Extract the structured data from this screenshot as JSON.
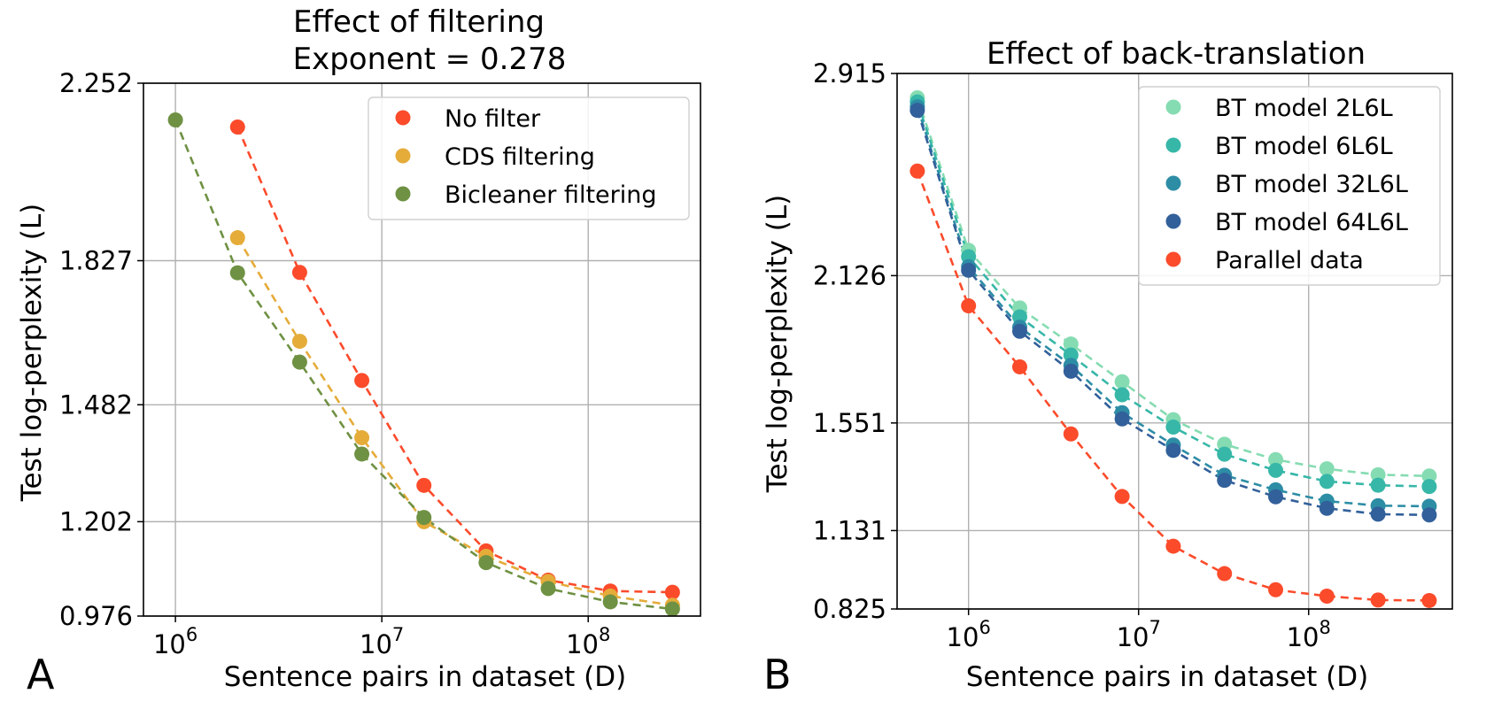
{
  "panel_labels": [
    "A",
    "B"
  ],
  "colors": {
    "no_filter": "#fb4b2b",
    "cds": "#e5ac3a",
    "bicleaner": "#6f9143",
    "bt_2L6L": "#86dcb2",
    "bt_6L6L": "#37b7a8",
    "bt_32L6L": "#2d8da5",
    "bt_64L6L": "#32609a",
    "parallel": "#fb4b2b",
    "grid": "#b0b0b0"
  },
  "chart_data": [
    {
      "type": "scatter",
      "panel": "A",
      "title": "Effect of filtering\nExponent = 0.278",
      "xlabel": "Sentence pairs in dataset (D)",
      "ylabel": "Test log-perplexity (L)",
      "xscale": "log",
      "xlim": [
        700000,
        350000000
      ],
      "ylim": [
        0.976,
        2.252
      ],
      "xticks": [
        1000000,
        10000000,
        100000000
      ],
      "xtick_labels": [
        "10^6",
        "10^7",
        "10^8"
      ],
      "yticks": [
        0.976,
        1.202,
        1.482,
        1.827,
        2.252
      ],
      "ytick_labels": [
        "0.976",
        "1.202",
        "1.482",
        "1.827",
        "2.252"
      ],
      "grid": true,
      "legend_position": "top-right",
      "series": [
        {
          "name": "No filter",
          "color_key": "no_filter",
          "x": [
            2000000,
            4000000,
            8000000,
            16000000,
            32000000,
            64000000,
            128000000,
            256000000
          ],
          "y": [
            2.147,
            1.799,
            1.54,
            1.289,
            1.132,
            1.062,
            1.036,
            1.033
          ]
        },
        {
          "name": "CDS filtering",
          "color_key": "cds",
          "x": [
            2000000,
            4000000,
            8000000,
            16000000,
            32000000,
            64000000,
            128000000,
            256000000
          ],
          "y": [
            1.882,
            1.634,
            1.403,
            1.202,
            1.119,
            1.059,
            1.024,
            1.002
          ]
        },
        {
          "name": "Bicleaner filtering",
          "color_key": "bicleaner",
          "x": [
            1000000,
            2000000,
            4000000,
            8000000,
            16000000,
            32000000,
            64000000,
            128000000,
            256000000
          ],
          "y": [
            2.164,
            1.798,
            1.584,
            1.364,
            1.212,
            1.104,
            1.042,
            1.01,
            0.993
          ]
        }
      ]
    },
    {
      "type": "scatter",
      "panel": "B",
      "title": "Effect of back-translation",
      "xlabel": "Sentence pairs in dataset (D)",
      "ylabel": "Test log-perplexity (L)",
      "xscale": "log",
      "xlim": [
        380000,
        700000000
      ],
      "ylim": [
        0.825,
        2.915
      ],
      "xticks": [
        1000000,
        10000000,
        100000000
      ],
      "xtick_labels": [
        "10^6",
        "10^7",
        "10^8"
      ],
      "yticks": [
        0.825,
        1.131,
        1.551,
        2.126,
        2.915
      ],
      "ytick_labels": [
        "0.825",
        "1.131",
        "1.551",
        "2.126",
        "2.915"
      ],
      "grid": true,
      "legend_position": "top-right",
      "series": [
        {
          "name": "BT model 2L6L",
          "color_key": "bt_2L6L",
          "x": [
            500000,
            1000000,
            2000000,
            4000000,
            8000000,
            16000000,
            32000000,
            64000000,
            128000000,
            256000000,
            512000000
          ],
          "y": [
            2.82,
            2.225,
            2.0,
            1.859,
            1.712,
            1.564,
            1.468,
            1.408,
            1.372,
            1.349,
            1.344
          ]
        },
        {
          "name": "BT model 6L6L",
          "color_key": "bt_6L6L",
          "x": [
            500000,
            1000000,
            2000000,
            4000000,
            8000000,
            16000000,
            32000000,
            64000000,
            128000000,
            256000000,
            512000000
          ],
          "y": [
            2.804,
            2.2,
            1.965,
            1.816,
            1.661,
            1.535,
            1.429,
            1.366,
            1.323,
            1.308,
            1.303
          ]
        },
        {
          "name": "BT model 32L6L",
          "color_key": "bt_32L6L",
          "x": [
            500000,
            1000000,
            2000000,
            4000000,
            8000000,
            16000000,
            32000000,
            64000000,
            128000000,
            256000000,
            512000000
          ],
          "y": [
            2.785,
            2.161,
            1.925,
            1.776,
            1.591,
            1.465,
            1.347,
            1.29,
            1.246,
            1.228,
            1.226
          ]
        },
        {
          "name": "BT model 64L6L",
          "color_key": "bt_64L6L",
          "x": [
            500000,
            1000000,
            2000000,
            4000000,
            8000000,
            16000000,
            32000000,
            64000000,
            128000000,
            256000000,
            512000000
          ],
          "y": [
            2.771,
            2.147,
            1.909,
            1.753,
            1.567,
            1.444,
            1.327,
            1.263,
            1.218,
            1.195,
            1.192
          ]
        },
        {
          "name": "Parallel data",
          "color_key": "parallel",
          "x": [
            500000,
            1000000,
            2000000,
            4000000,
            8000000,
            16000000,
            32000000,
            64000000,
            128000000,
            256000000,
            512000000
          ],
          "y": [
            2.534,
            2.008,
            1.77,
            1.508,
            1.264,
            1.07,
            0.963,
            0.9,
            0.875,
            0.86,
            0.858
          ]
        }
      ]
    }
  ]
}
